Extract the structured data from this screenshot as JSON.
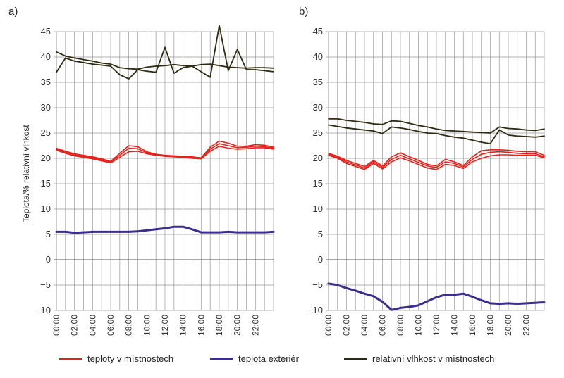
{
  "panels": [
    "a)",
    "b)"
  ],
  "ylabel": "Teplota/% relativní vlhkost",
  "legend": {
    "rooms_temp": "teploty v místnostech",
    "ext_temp": "teplota exteriér",
    "humidity": "relativní vlhkost v místnostech"
  },
  "colors": {
    "rooms_temp": "#e3231b",
    "ext_temp": "#3b2e8c",
    "humidity": "#2f2b12",
    "grid": "#999999"
  },
  "chart_data": [
    {
      "type": "line",
      "panel": "a)",
      "ylim": [
        -10,
        45
      ],
      "yticks": [
        45,
        40,
        35,
        30,
        25,
        20,
        15,
        10,
        5,
        0,
        -5,
        -10
      ],
      "xlim": [
        0,
        24
      ],
      "xticks": [
        "00:00",
        "02:00",
        "04:00",
        "06:00",
        "08:00",
        "10:00",
        "12:00",
        "14:00",
        "16:00",
        "18:00",
        "20:00",
        "22:00"
      ],
      "grid": true,
      "x": [
        0,
        1,
        2,
        3,
        4,
        5,
        6,
        7,
        8,
        9,
        10,
        11,
        12,
        13,
        14,
        15,
        16,
        17,
        18,
        19,
        20,
        21,
        22,
        23,
        24
      ],
      "series": [
        {
          "group": "rooms_temp",
          "values": [
            22.0,
            21.4,
            20.9,
            20.6,
            20.3,
            19.9,
            19.4,
            21.0,
            22.5,
            22.3,
            21.3,
            20.8,
            20.6,
            20.5,
            20.4,
            20.3,
            20.1,
            22.2,
            23.4,
            23.0,
            22.4,
            22.4,
            22.7,
            22.6,
            22.2
          ]
        },
        {
          "group": "rooms_temp",
          "values": [
            21.8,
            21.2,
            20.7,
            20.4,
            20.1,
            19.7,
            19.3,
            20.6,
            22.0,
            21.9,
            21.1,
            20.7,
            20.5,
            20.4,
            20.3,
            20.1,
            20.0,
            21.8,
            22.9,
            22.5,
            22.1,
            22.2,
            22.4,
            22.3,
            22.0
          ]
        },
        {
          "group": "rooms_temp",
          "values": [
            21.6,
            21.0,
            20.5,
            20.2,
            19.9,
            19.5,
            19.1,
            20.2,
            21.3,
            21.4,
            20.9,
            20.6,
            20.4,
            20.3,
            20.2,
            20.0,
            19.9,
            21.4,
            22.4,
            22.0,
            21.8,
            21.9,
            22.1,
            22.1,
            21.8
          ]
        },
        {
          "group": "ext_temp",
          "values": [
            5.5,
            5.5,
            5.3,
            5.4,
            5.5,
            5.5,
            5.5,
            5.5,
            5.5,
            5.6,
            5.8,
            6.0,
            6.2,
            6.5,
            6.5,
            6.0,
            5.4,
            5.4,
            5.4,
            5.5,
            5.4,
            5.4,
            5.4,
            5.4,
            5.5
          ]
        },
        {
          "group": "humidity",
          "values": [
            41.0,
            40.2,
            39.8,
            39.5,
            39.2,
            38.8,
            38.6,
            37.9,
            37.7,
            37.6,
            38.0,
            38.2,
            38.3,
            38.5,
            38.3,
            38.2,
            38.5,
            38.6,
            38.3,
            38.0,
            37.9,
            37.8,
            37.9,
            37.9,
            37.8
          ]
        },
        {
          "group": "humidity",
          "values": [
            37.0,
            39.8,
            39.2,
            38.9,
            38.6,
            38.4,
            38.2,
            36.5,
            35.7,
            37.5,
            37.2,
            37.0,
            41.9,
            36.8,
            37.9,
            38.2,
            37.1,
            36.0,
            46.2,
            37.3,
            41.5,
            37.5,
            37.5,
            37.3,
            37.1
          ]
        }
      ]
    },
    {
      "type": "line",
      "panel": "b)",
      "ylim": [
        -10,
        45
      ],
      "yticks": [
        45,
        40,
        35,
        30,
        25,
        20,
        15,
        10,
        5,
        0,
        -5,
        -10
      ],
      "xlim": [
        0,
        24
      ],
      "xticks": [
        "00:00",
        "02:00",
        "04:00",
        "06:00",
        "08:00",
        "10:00",
        "12:00",
        "14:00",
        "16:00",
        "18:00",
        "20:00",
        "22:00"
      ],
      "grid": true,
      "x": [
        0,
        1,
        2,
        3,
        4,
        5,
        6,
        7,
        8,
        9,
        10,
        11,
        12,
        13,
        14,
        15,
        16,
        17,
        18,
        19,
        20,
        21,
        22,
        23,
        24
      ],
      "series": [
        {
          "group": "rooms_temp",
          "values": [
            21.0,
            20.4,
            19.6,
            19.0,
            18.4,
            19.6,
            18.5,
            20.3,
            21.1,
            20.3,
            19.6,
            18.8,
            18.5,
            19.8,
            19.3,
            18.6,
            20.3,
            21.5,
            21.7,
            21.7,
            21.6,
            21.4,
            21.3,
            21.3,
            20.6
          ]
        },
        {
          "group": "rooms_temp",
          "values": [
            20.8,
            20.2,
            19.3,
            18.7,
            18.1,
            19.3,
            18.2,
            19.8,
            20.6,
            19.9,
            19.2,
            18.5,
            18.2,
            19.3,
            19.0,
            18.3,
            19.8,
            20.8,
            21.2,
            21.3,
            21.2,
            21.0,
            20.9,
            20.9,
            20.3
          ]
        },
        {
          "group": "rooms_temp",
          "values": [
            20.6,
            20.0,
            19.0,
            18.4,
            17.8,
            19.0,
            17.9,
            19.3,
            20.1,
            19.5,
            18.8,
            18.1,
            17.8,
            18.8,
            18.6,
            18.0,
            19.3,
            20.0,
            20.5,
            20.7,
            20.7,
            20.6,
            20.6,
            20.6,
            20.1
          ]
        },
        {
          "group": "ext_temp",
          "values": [
            -4.7,
            -5.0,
            -5.6,
            -6.1,
            -6.7,
            -7.2,
            -8.3,
            -9.9,
            -9.5,
            -9.3,
            -9.0,
            -8.2,
            -7.4,
            -6.9,
            -6.9,
            -6.7,
            -7.3,
            -8.0,
            -8.6,
            -8.7,
            -8.6,
            -8.7,
            -8.6,
            -8.5,
            -8.4
          ]
        },
        {
          "group": "humidity",
          "values": [
            27.8,
            27.8,
            27.5,
            27.3,
            27.1,
            26.8,
            26.7,
            27.4,
            27.3,
            26.9,
            26.5,
            26.2,
            25.8,
            25.5,
            25.4,
            25.3,
            25.2,
            25.1,
            25.0,
            26.2,
            25.9,
            25.8,
            25.6,
            25.5,
            25.8
          ]
        },
        {
          "group": "humidity",
          "values": [
            26.6,
            26.3,
            26.0,
            25.8,
            25.6,
            25.4,
            24.9,
            26.2,
            26.0,
            25.7,
            25.3,
            25.0,
            24.9,
            24.5,
            24.2,
            24.0,
            23.6,
            23.2,
            22.9,
            25.6,
            24.6,
            24.4,
            24.3,
            24.2,
            24.4
          ]
        }
      ]
    }
  ]
}
